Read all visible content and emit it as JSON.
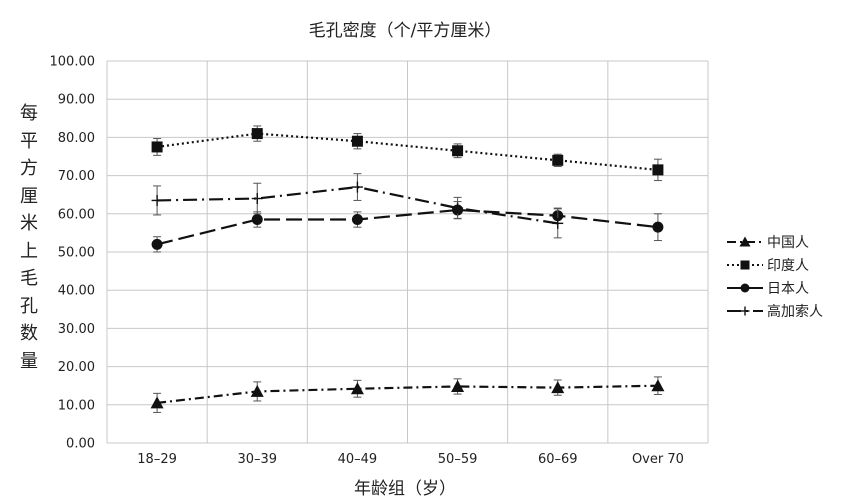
{
  "chart_data": {
    "type": "line",
    "title": "毛孔密度（个/平方厘米）",
    "xlabel": "年龄组（岁）",
    "ylabel": "每平方厘米上毛孔数量",
    "categories": [
      "18–29",
      "30–39",
      "40–49",
      "50–59",
      "60–69",
      "Over 70"
    ],
    "y_ticks": [
      "0.00",
      "10.00",
      "20.00",
      "30.00",
      "40.00",
      "50.00",
      "60.00",
      "70.00",
      "80.00",
      "90.00",
      "100.00"
    ],
    "ylim": [
      0,
      100
    ],
    "grid": true,
    "legend_position": "right",
    "series": [
      {
        "name": "中国人",
        "marker": "triangle",
        "dash": "dash-dot",
        "color": "#111111",
        "values": [
          10.5,
          13.5,
          14.2,
          14.8,
          14.5,
          15.0
        ],
        "errors": [
          2.5,
          2.5,
          2.2,
          2.0,
          2.0,
          2.3
        ]
      },
      {
        "name": "印度人",
        "marker": "square",
        "dash": "dotted",
        "color": "#111111",
        "values": [
          77.5,
          81.0,
          79.0,
          76.5,
          74.0,
          71.5
        ],
        "errors": [
          2.2,
          2.0,
          2.0,
          1.8,
          1.6,
          2.8
        ]
      },
      {
        "name": "日本人",
        "marker": "circle",
        "dash": "long-dash",
        "color": "#111111",
        "values": [
          52.0,
          58.5,
          58.5,
          61.0,
          59.5,
          56.5
        ],
        "errors": [
          2.0,
          2.0,
          2.0,
          2.2,
          2.0,
          3.5
        ]
      },
      {
        "name": "高加索人",
        "marker": "plus",
        "dash": "long-dash-dot",
        "color": "#111111",
        "values": [
          63.5,
          64.0,
          67.0,
          61.5,
          57.5,
          null
        ],
        "errors": [
          3.8,
          4.0,
          3.5,
          2.8,
          3.8,
          null
        ]
      }
    ]
  }
}
